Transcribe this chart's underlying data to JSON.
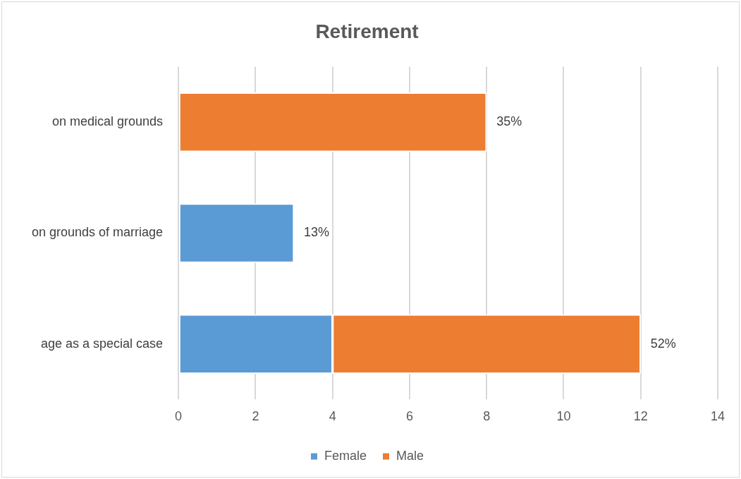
{
  "chart_data": {
    "type": "bar",
    "orientation": "horizontal",
    "stacked": true,
    "title": "Retirement",
    "categories": [
      "on medical grounds",
      "on grounds of marriage",
      "age as a special case"
    ],
    "series": [
      {
        "name": "Female",
        "color": "#5b9bd5",
        "values": [
          null,
          3,
          4
        ]
      },
      {
        "name": "Male",
        "color": "#ed7d31",
        "values": [
          8,
          null,
          8
        ]
      }
    ],
    "annotations": [
      {
        "text": "35%",
        "x": 8,
        "y": "on medical grounds"
      },
      {
        "text": "13%",
        "x": 3,
        "y": "on grounds of marriage"
      },
      {
        "text": "52%",
        "x": 12,
        "y": "age as a special case"
      }
    ],
    "xlim": [
      0,
      14
    ],
    "xticks": [
      0,
      2,
      4,
      6,
      8,
      10,
      12,
      14
    ],
    "grid": "x",
    "legend": "bottom"
  }
}
